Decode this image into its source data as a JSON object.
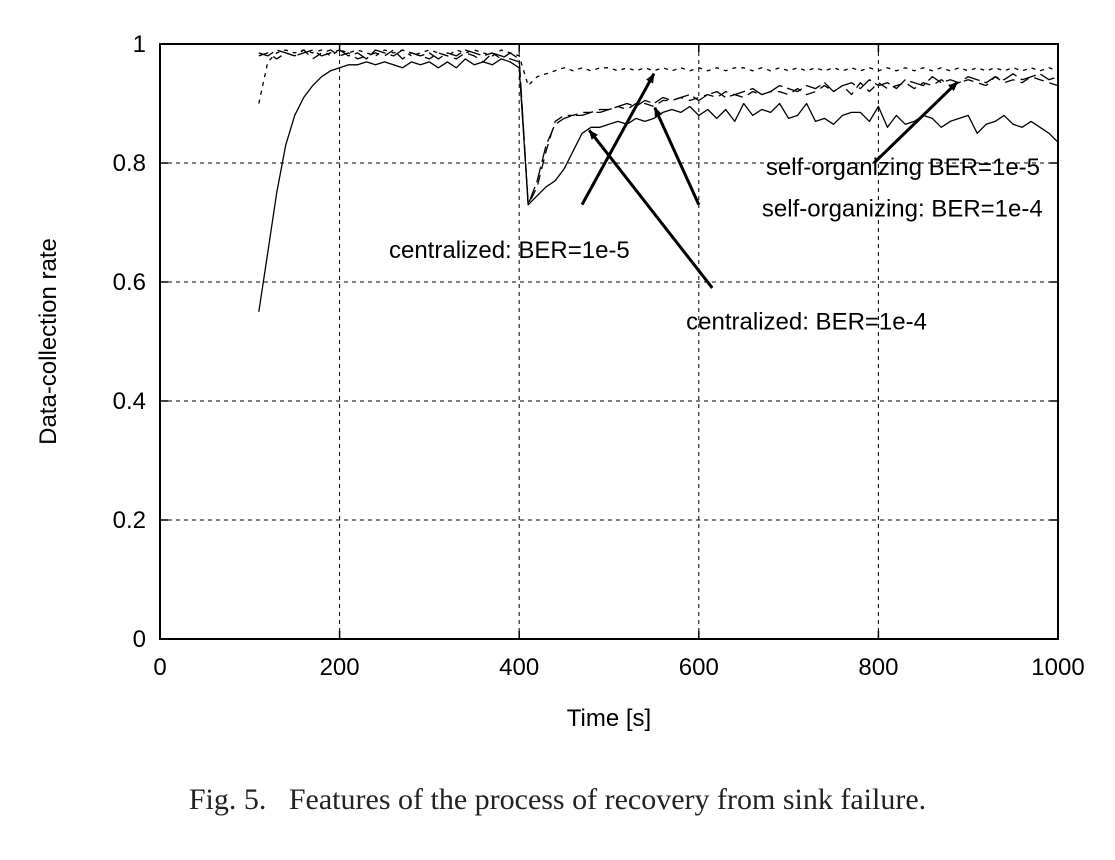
{
  "caption": "Fig. 5.   Features of the process of recovery from sink failure.",
  "chart_data": {
    "type": "line",
    "xlabel": "Time [s]",
    "ylabel": "Data-collection rate",
    "xlim": [
      0,
      1000
    ],
    "ylim": [
      0,
      1
    ],
    "xticks": [
      0,
      200,
      400,
      600,
      800,
      1000
    ],
    "yticks": [
      0,
      0.2,
      0.4,
      0.6,
      0.8,
      1
    ],
    "xtick_labels": [
      "0",
      "200",
      "400",
      "600",
      "800",
      "1000"
    ],
    "ytick_labels": [
      "0",
      "0.2",
      "0.4",
      "0.6",
      "0.8",
      "1"
    ],
    "grid": true,
    "series": [
      {
        "style": "solid",
        "x": [
          110,
          120,
          130,
          140,
          150,
          160,
          170,
          180,
          190,
          200,
          210,
          220,
          230,
          240,
          250,
          260,
          270,
          280,
          290,
          300,
          310,
          320,
          330,
          340,
          350,
          360,
          370,
          380,
          390,
          400,
          410,
          420,
          430,
          440,
          450,
          460,
          470,
          480,
          490,
          500,
          510,
          520,
          530,
          540,
          550,
          560,
          570,
          580,
          590,
          600,
          610,
          620,
          630,
          640,
          650,
          660,
          670,
          680,
          690,
          700,
          710,
          720,
          730,
          740,
          750,
          760,
          770,
          780,
          790,
          800,
          810,
          820,
          830,
          840,
          850,
          860,
          870,
          880,
          890,
          900,
          910,
          920,
          930,
          940,
          950,
          960,
          970,
          980,
          990,
          1000
        ],
        "y": [
          0.55,
          0.65,
          0.75,
          0.83,
          0.88,
          0.91,
          0.93,
          0.945,
          0.955,
          0.96,
          0.965,
          0.965,
          0.97,
          0.965,
          0.97,
          0.965,
          0.96,
          0.97,
          0.965,
          0.97,
          0.96,
          0.97,
          0.96,
          0.975,
          0.965,
          0.97,
          0.965,
          0.975,
          0.97,
          0.96,
          0.73,
          0.745,
          0.76,
          0.77,
          0.79,
          0.82,
          0.85,
          0.86,
          0.86,
          0.865,
          0.87,
          0.865,
          0.875,
          0.87,
          0.875,
          0.885,
          0.89,
          0.885,
          0.895,
          0.88,
          0.89,
          0.875,
          0.89,
          0.87,
          0.9,
          0.88,
          0.89,
          0.885,
          0.9,
          0.875,
          0.88,
          0.9,
          0.87,
          0.875,
          0.865,
          0.88,
          0.885,
          0.885,
          0.87,
          0.895,
          0.86,
          0.88,
          0.865,
          0.87,
          0.88,
          0.875,
          0.86,
          0.87,
          0.875,
          0.88,
          0.85,
          0.865,
          0.87,
          0.88,
          0.865,
          0.86,
          0.87,
          0.86,
          0.85,
          0.835
        ]
      },
      {
        "style": "dashed",
        "x": [
          110,
          120,
          130,
          140,
          150,
          160,
          170,
          180,
          190,
          200,
          210,
          220,
          230,
          240,
          250,
          260,
          270,
          280,
          290,
          300,
          310,
          320,
          330,
          340,
          350,
          360,
          370,
          380,
          390,
          400,
          410,
          420,
          430,
          440,
          450,
          460,
          470,
          480,
          490,
          500,
          510,
          520,
          530,
          540,
          550,
          560,
          570,
          580,
          590,
          600,
          610,
          620,
          630,
          640,
          650,
          660,
          670,
          680,
          690,
          700,
          710,
          720,
          730,
          740,
          750,
          760,
          770,
          780,
          790,
          800,
          810,
          820,
          830,
          840,
          850,
          860,
          870,
          880,
          890,
          900,
          910,
          920,
          930,
          940,
          950,
          960,
          970,
          980,
          990,
          1000
        ],
        "y": [
          0.98,
          0.985,
          0.975,
          0.985,
          0.98,
          0.99,
          0.975,
          0.985,
          0.99,
          0.98,
          0.985,
          0.975,
          0.98,
          0.985,
          0.98,
          0.99,
          0.975,
          0.985,
          0.98,
          0.975,
          0.985,
          0.98,
          0.975,
          0.985,
          0.98,
          0.97,
          0.985,
          0.98,
          0.975,
          0.97,
          0.73,
          0.76,
          0.82,
          0.87,
          0.88,
          0.88,
          0.885,
          0.885,
          0.89,
          0.89,
          0.895,
          0.89,
          0.9,
          0.9,
          0.895,
          0.905,
          0.905,
          0.91,
          0.905,
          0.91,
          0.915,
          0.91,
          0.92,
          0.915,
          0.91,
          0.92,
          0.915,
          0.92,
          0.92,
          0.915,
          0.925,
          0.915,
          0.92,
          0.93,
          0.92,
          0.93,
          0.915,
          0.935,
          0.92,
          0.935,
          0.925,
          0.93,
          0.935,
          0.925,
          0.935,
          0.93,
          0.94,
          0.93,
          0.935,
          0.94,
          0.935,
          0.93,
          0.945,
          0.935,
          0.94,
          0.935,
          0.945,
          0.94,
          0.935,
          0.93
        ]
      },
      {
        "style": "long-dash",
        "x": [
          110,
          120,
          130,
          140,
          150,
          160,
          170,
          180,
          190,
          200,
          210,
          220,
          230,
          240,
          250,
          260,
          270,
          280,
          290,
          300,
          310,
          320,
          330,
          340,
          350,
          360,
          370,
          380,
          390,
          400,
          410,
          420,
          430,
          440,
          450,
          460,
          470,
          480,
          490,
          500,
          510,
          520,
          530,
          540,
          550,
          560,
          570,
          580,
          590,
          600,
          610,
          620,
          630,
          640,
          650,
          660,
          670,
          680,
          690,
          700,
          710,
          720,
          730,
          740,
          750,
          760,
          770,
          780,
          790,
          800,
          810,
          820,
          830,
          840,
          850,
          860,
          870,
          880,
          890,
          900,
          910,
          920,
          930,
          940,
          950,
          960,
          970,
          980,
          990,
          1000
        ],
        "y": [
          0.985,
          0.98,
          0.99,
          0.985,
          0.98,
          0.985,
          0.99,
          0.98,
          0.985,
          0.99,
          0.98,
          0.985,
          0.975,
          0.99,
          0.985,
          0.98,
          0.99,
          0.985,
          0.98,
          0.985,
          0.975,
          0.985,
          0.98,
          0.99,
          0.985,
          0.98,
          0.985,
          0.975,
          0.985,
          0.975,
          0.73,
          0.77,
          0.83,
          0.865,
          0.875,
          0.88,
          0.88,
          0.885,
          0.885,
          0.89,
          0.895,
          0.9,
          0.895,
          0.905,
          0.9,
          0.91,
          0.905,
          0.91,
          0.915,
          0.905,
          0.915,
          0.92,
          0.91,
          0.915,
          0.92,
          0.925,
          0.915,
          0.92,
          0.93,
          0.925,
          0.92,
          0.93,
          0.925,
          0.935,
          0.92,
          0.93,
          0.935,
          0.925,
          0.94,
          0.93,
          0.935,
          0.925,
          0.94,
          0.935,
          0.93,
          0.945,
          0.935,
          0.94,
          0.935,
          0.945,
          0.94,
          0.935,
          0.945,
          0.94,
          0.95,
          0.94,
          0.945,
          0.95,
          0.94,
          0.945
        ]
      },
      {
        "style": "dotted",
        "x": [
          110,
          120,
          130,
          140,
          150,
          160,
          170,
          180,
          190,
          200,
          210,
          220,
          230,
          240,
          250,
          260,
          270,
          280,
          290,
          300,
          310,
          320,
          330,
          340,
          350,
          360,
          370,
          380,
          390,
          400,
          410,
          420,
          430,
          440,
          450,
          460,
          470,
          480,
          490,
          500,
          510,
          520,
          530,
          540,
          550,
          560,
          570,
          580,
          590,
          600,
          610,
          620,
          630,
          640,
          650,
          660,
          670,
          680,
          690,
          700,
          710,
          720,
          730,
          740,
          750,
          760,
          770,
          780,
          790,
          800,
          810,
          820,
          830,
          840,
          850,
          860,
          870,
          880,
          890,
          900,
          910,
          920,
          930,
          940,
          950,
          960,
          970,
          980,
          990,
          1000
        ],
        "y": [
          0.9,
          0.97,
          0.985,
          0.99,
          0.985,
          0.99,
          0.985,
          0.99,
          0.98,
          0.99,
          0.985,
          0.99,
          0.985,
          0.98,
          0.99,
          0.985,
          0.99,
          0.98,
          0.985,
          0.99,
          0.985,
          0.98,
          0.99,
          0.985,
          0.99,
          0.985,
          0.98,
          0.99,
          0.985,
          0.98,
          0.93,
          0.945,
          0.95,
          0.955,
          0.96,
          0.955,
          0.96,
          0.955,
          0.96,
          0.96,
          0.955,
          0.96,
          0.955,
          0.96,
          0.955,
          0.96,
          0.955,
          0.96,
          0.955,
          0.96,
          0.955,
          0.96,
          0.955,
          0.96,
          0.96,
          0.955,
          0.96,
          0.955,
          0.96,
          0.955,
          0.96,
          0.955,
          0.96,
          0.955,
          0.96,
          0.955,
          0.96,
          0.955,
          0.96,
          0.955,
          0.96,
          0.955,
          0.96,
          0.955,
          0.96,
          0.955,
          0.96,
          0.955,
          0.96,
          0.955,
          0.96,
          0.955,
          0.96,
          0.955,
          0.96,
          0.955,
          0.96,
          0.955,
          0.96,
          0.955
        ]
      }
    ],
    "annotations": [
      {
        "text": "centralized: BER=1e-5",
        "text_at": [
          255,
          0.64
        ],
        "arrow_from": [
          470,
          0.73
        ],
        "arrow_to": [
          550,
          0.95
        ]
      },
      {
        "text": "centralized: BER=1e-4",
        "text_at": [
          720,
          0.52
        ],
        "arrow_from": [
          615,
          0.59
        ],
        "arrow_to": [
          478,
          0.855
        ]
      },
      {
        "text": "self-organizing BER=1e-5",
        "text_at": [
          980,
          0.78
        ],
        "arrow_from": [
          795,
          0.8
        ],
        "arrow_to": [
          888,
          0.936
        ]
      },
      {
        "text": "self-organizing: BER=1e-4",
        "text_at": [
          983,
          0.71
        ],
        "arrow_from": [
          600,
          0.73
        ],
        "arrow_to": [
          551,
          0.893
        ]
      }
    ]
  }
}
